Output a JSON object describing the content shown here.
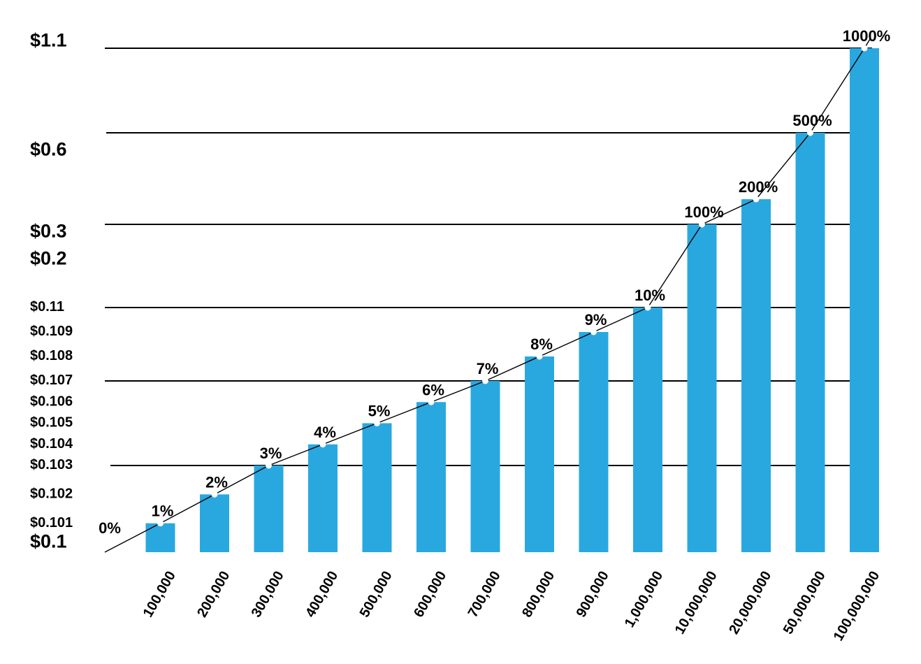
{
  "chart_data": {
    "type": "bar",
    "title": "",
    "xlabel": "",
    "ylabel": "",
    "bar_color": "#29a8e0",
    "line_color": "#000000",
    "grid": true,
    "categories": [
      "100,000",
      "200,000",
      "300,000",
      "400,000",
      "500,000",
      "600,000",
      "700,000",
      "800,000",
      "900,000",
      "1,000,000",
      "10,000,000",
      "20,000,000",
      "50,000,000",
      "100,000,000"
    ],
    "values": [
      0.101,
      0.102,
      0.103,
      0.104,
      0.105,
      0.106,
      0.107,
      0.108,
      0.109,
      0.11,
      0.2,
      0.3,
      0.6,
      1.1
    ],
    "data_labels": [
      "1%",
      "2%",
      "3%",
      "4%",
      "5%",
      "6%",
      "7%",
      "8%",
      "9%",
      "10%",
      "100%",
      "200%",
      "500%",
      "1000%"
    ],
    "origin_label": "0%",
    "yticks": [
      {
        "label": "$0.1",
        "value": 0.1,
        "major": true
      },
      {
        "label": "$0.101",
        "value": 0.101,
        "major": false
      },
      {
        "label": "$0.102",
        "value": 0.102,
        "major": false
      },
      {
        "label": "$0.103",
        "value": 0.103,
        "major": false
      },
      {
        "label": "$0.104",
        "value": 0.104,
        "major": false
      },
      {
        "label": "$0.105",
        "value": 0.105,
        "major": false
      },
      {
        "label": "$0.106",
        "value": 0.106,
        "major": false
      },
      {
        "label": "$0.107",
        "value": 0.107,
        "major": false
      },
      {
        "label": "$0.108",
        "value": 0.108,
        "major": false
      },
      {
        "label": "$0.109",
        "value": 0.109,
        "major": false
      },
      {
        "label": "$0.11",
        "value": 0.11,
        "major": false
      },
      {
        "label": "$0.2",
        "value": 0.2,
        "major": true
      },
      {
        "label": "$0.3",
        "value": 0.3,
        "major": true
      },
      {
        "label": "$0.6",
        "value": 0.6,
        "major": true
      },
      {
        "label": "$1.1",
        "value": 1.1,
        "major": true
      }
    ]
  }
}
